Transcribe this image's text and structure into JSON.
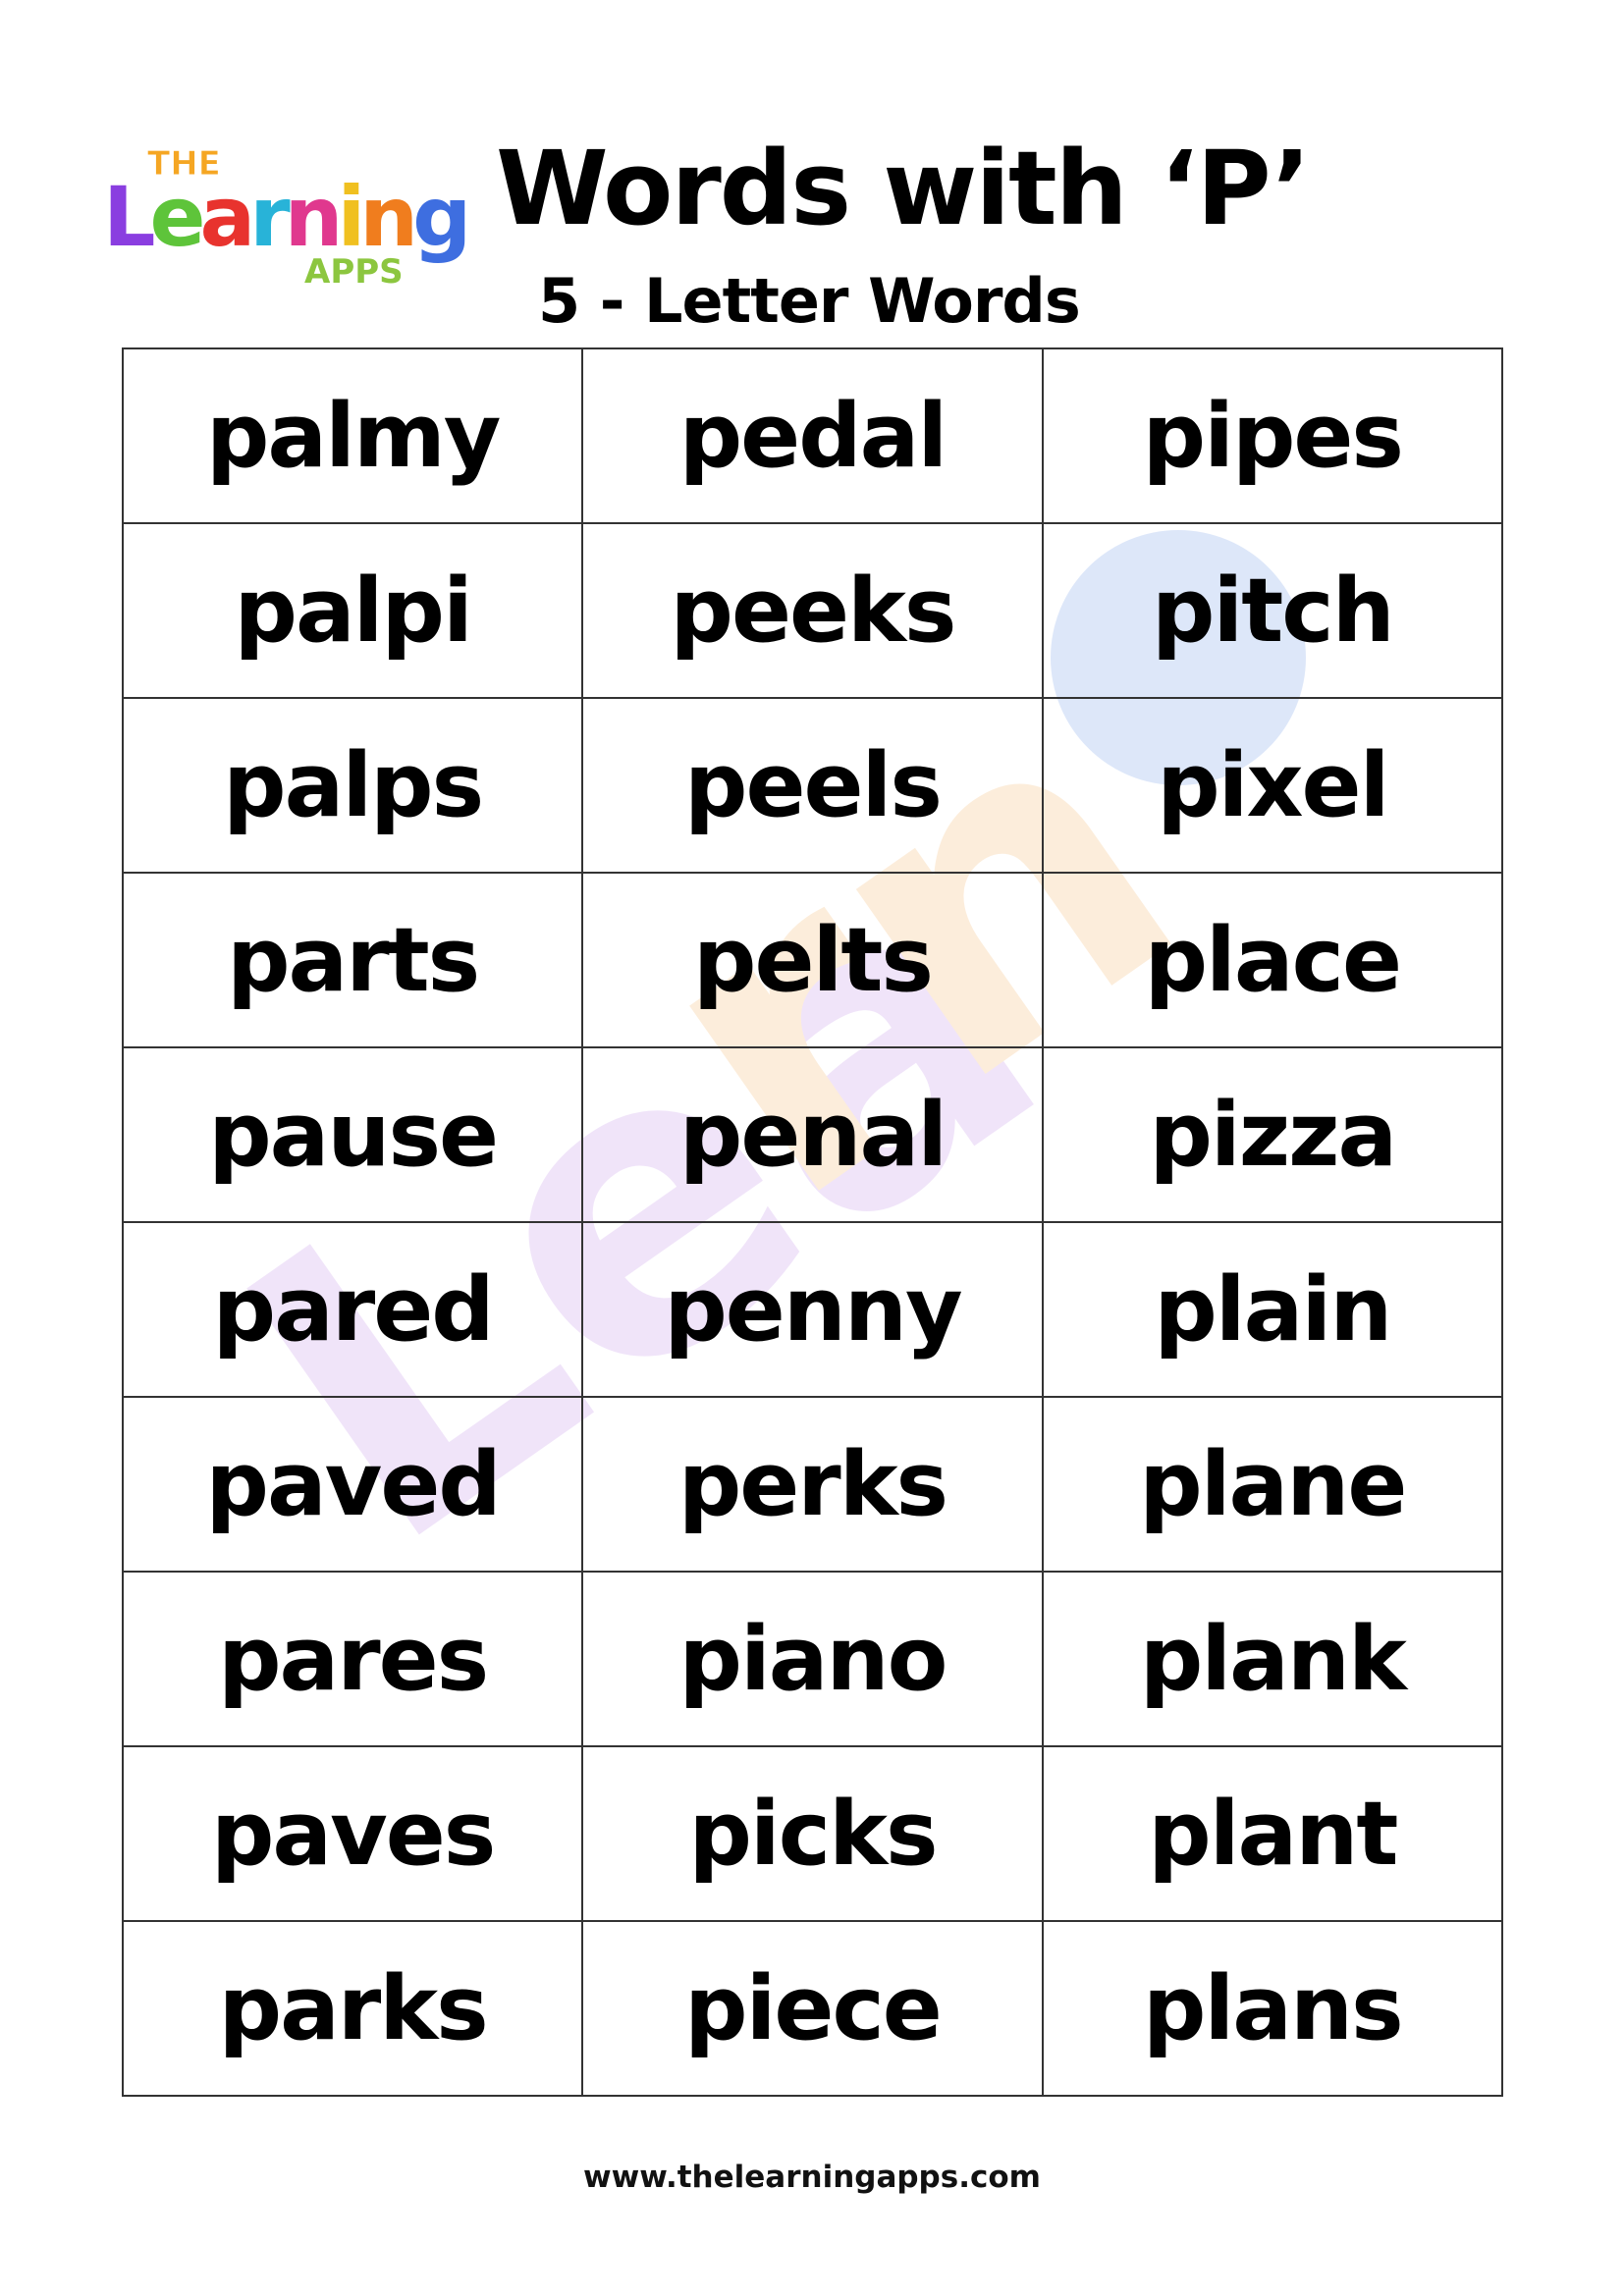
{
  "logo": {
    "line1": "THE",
    "line2": "Learning",
    "line3": "APPS"
  },
  "header": {
    "title": "Words with ‘P’",
    "subtitle": "5 - Letter Words"
  },
  "words": [
    [
      "palmy",
      "pedal",
      "pipes"
    ],
    [
      "palpi",
      "peeks",
      "pitch"
    ],
    [
      "palps",
      "peels",
      "pixel"
    ],
    [
      "parts",
      "pelts",
      "place"
    ],
    [
      "pause",
      "penal",
      "pizza"
    ],
    [
      "pared",
      "penny",
      "plain"
    ],
    [
      "paved",
      "perks",
      "plane"
    ],
    [
      "pares",
      "piano",
      "plank"
    ],
    [
      "paves",
      "picks",
      "plant"
    ],
    [
      "parks",
      "piece",
      "plans"
    ]
  ],
  "footer": {
    "url": "www.thelearningapps.com"
  }
}
